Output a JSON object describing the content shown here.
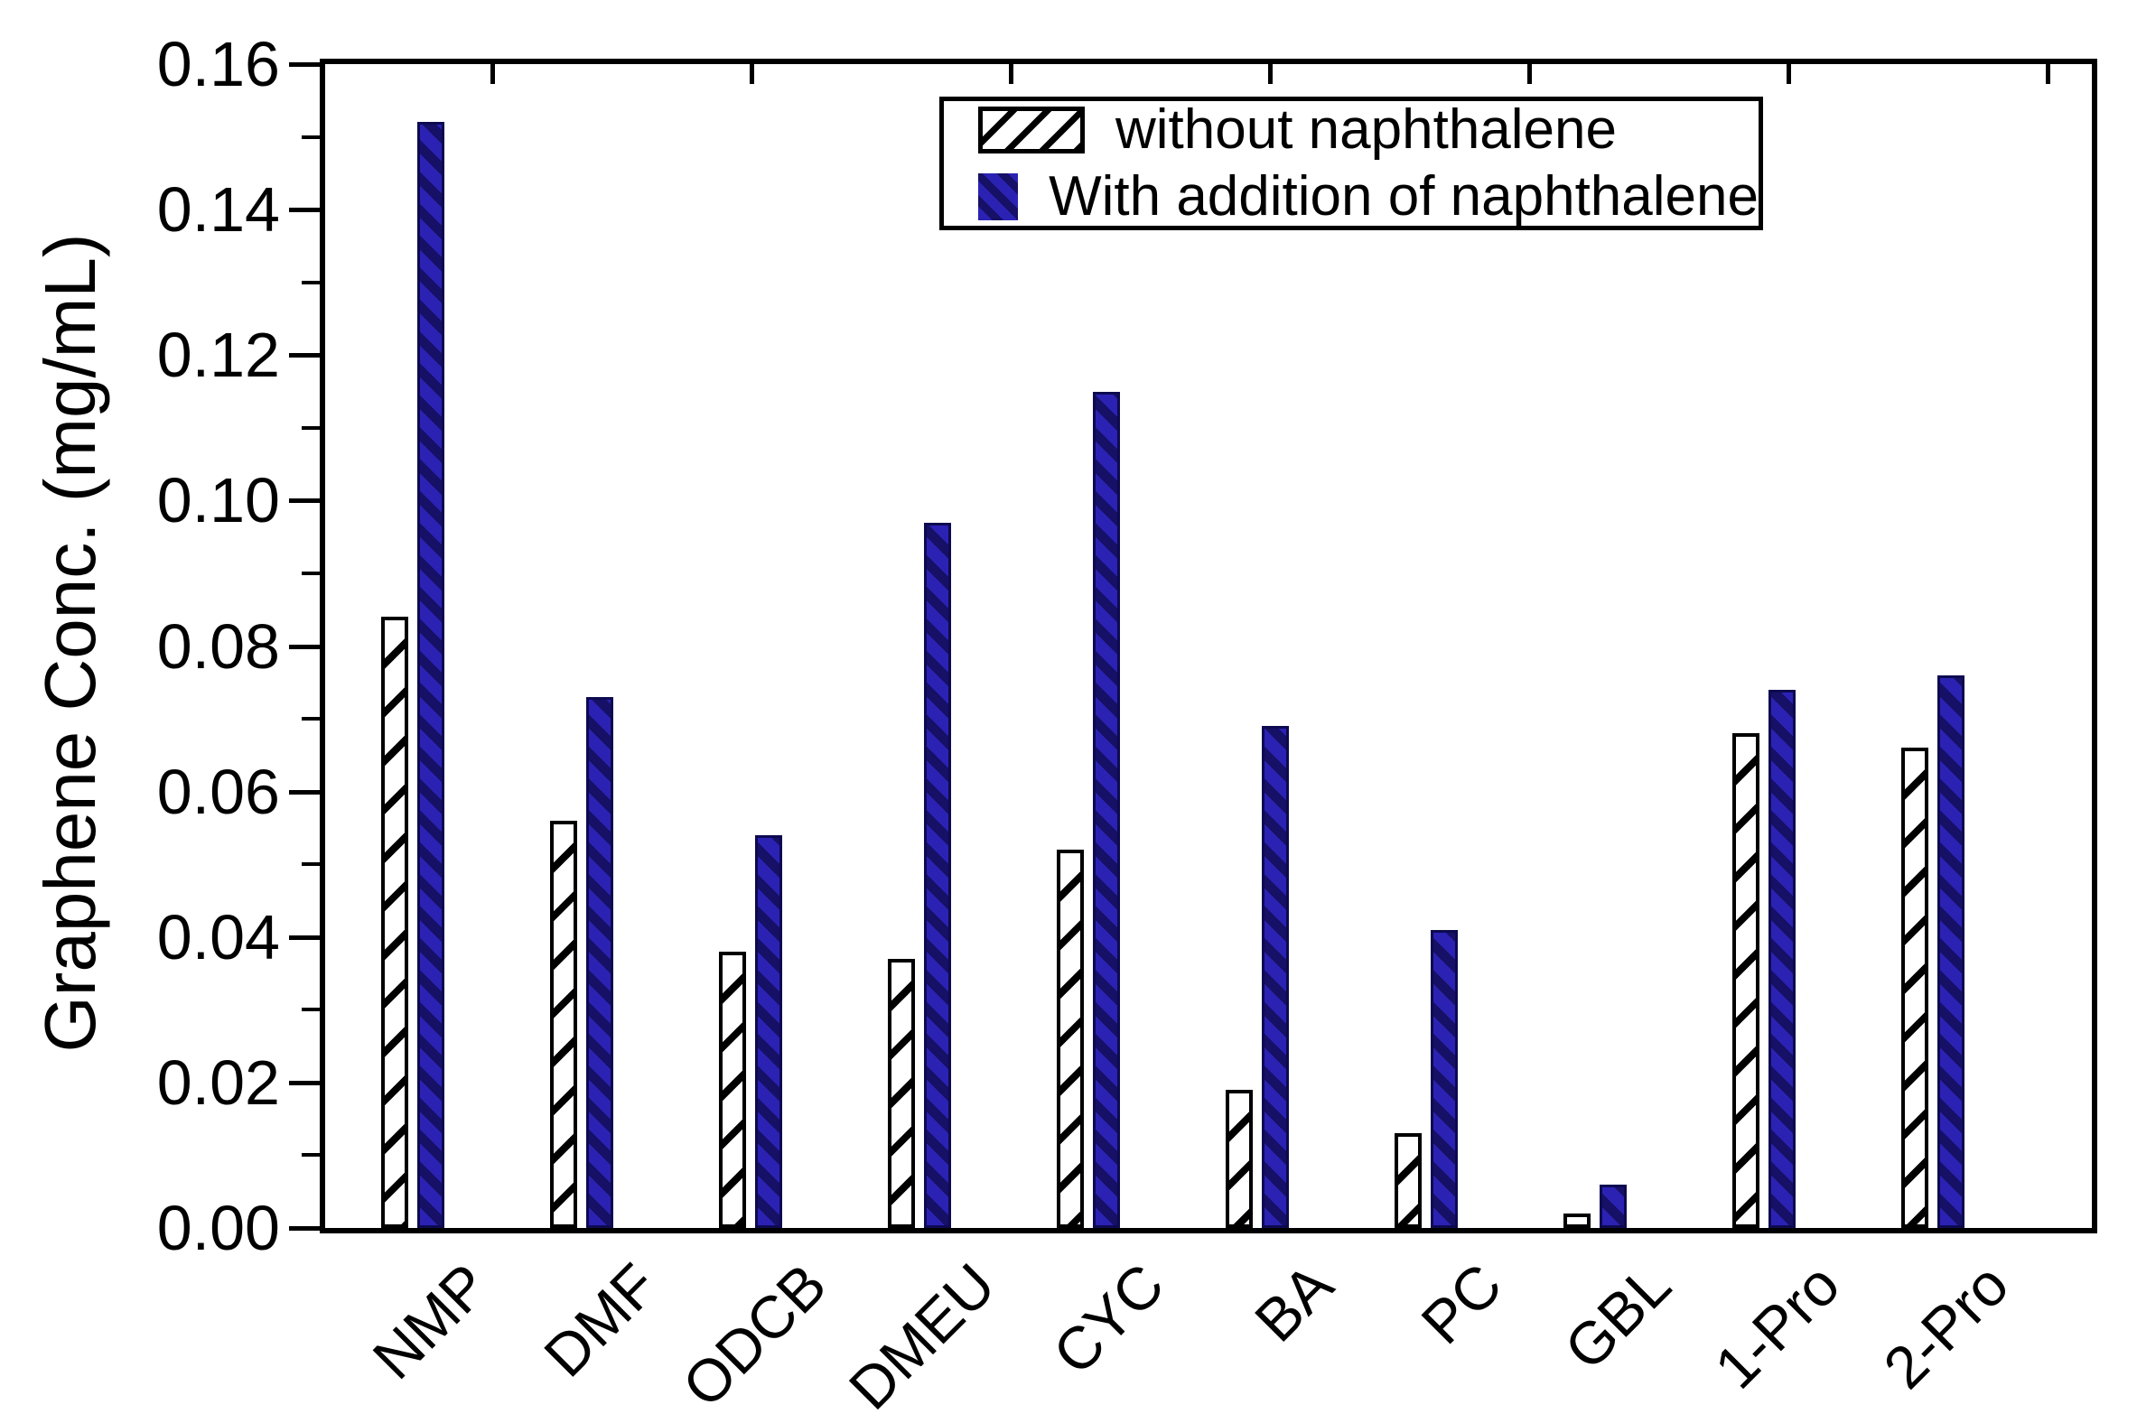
{
  "figure": {
    "ylabel": "Graphene Conc. (mg/mL)"
  },
  "chart_data": {
    "type": "bar",
    "title": "",
    "xlabel": "",
    "ylabel": "Graphene Conc. (mg/mL)",
    "categories": [
      "NMP",
      "DMF",
      "ODCB",
      "DMEU",
      "CYC",
      "BA",
      "PC",
      "GBL",
      "1-Pro",
      "2-Pro"
    ],
    "series": [
      {
        "name": "without naphthalene",
        "style": "white-diagonal-hatch",
        "values": [
          0.084,
          0.056,
          0.038,
          0.037,
          0.052,
          0.019,
          0.013,
          0.002,
          0.068,
          0.066
        ]
      },
      {
        "name": "With addition of naphthalene",
        "style": "blue-diagonal-hatch",
        "values": [
          0.152,
          0.073,
          0.054,
          0.097,
          0.115,
          0.069,
          0.041,
          0.006,
          0.074,
          0.076
        ]
      }
    ],
    "ylim": [
      0,
      0.16
    ],
    "ytick_step": 0.02,
    "yminor_step": 0.01,
    "ytick_format_decimals": 2,
    "grid": false,
    "legend_position": "upper center",
    "colors": {
      "with_fill": "#2b22b4",
      "with_hatch": "#161066",
      "without_fill": "#ffffff",
      "hatch_line": "#000000",
      "axis": "#000000"
    }
  }
}
